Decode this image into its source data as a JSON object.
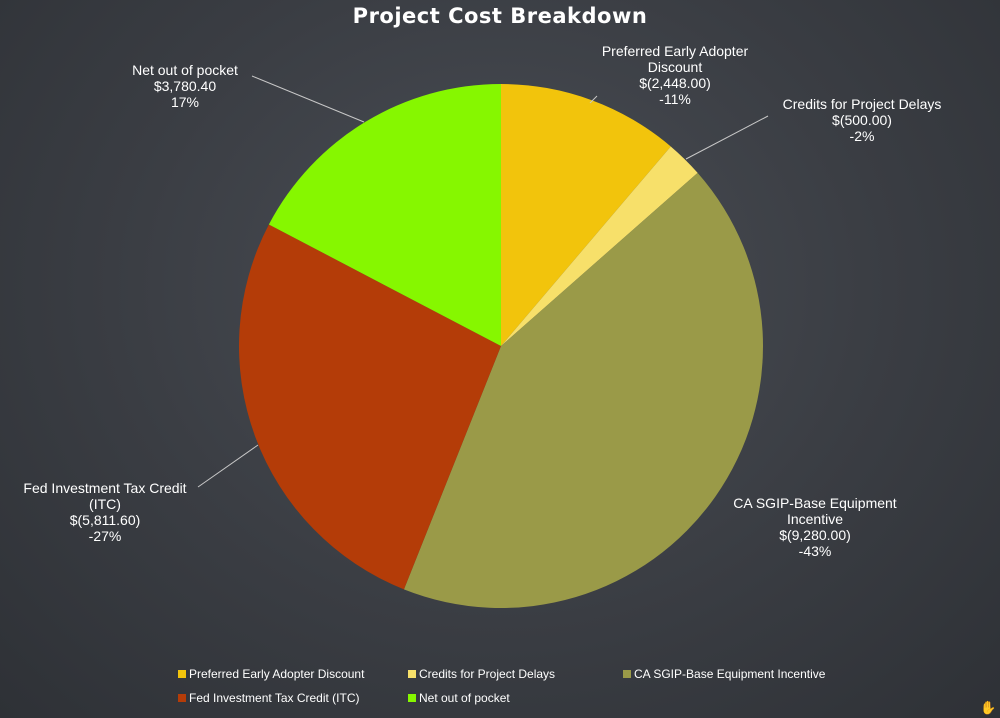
{
  "chart_data": {
    "type": "pie",
    "title": "Project Cost Breakdown",
    "start_angle_deg": 0,
    "direction": "clockwise",
    "slices": [
      {
        "name": "Preferred Early Adopter Discount",
        "label_lines": [
          "Preferred Early Adopter",
          "Discount"
        ],
        "value": 2448.0,
        "value_label": "$(2,448.00)",
        "percent_label": "-11%",
        "color": "#f2c40c"
      },
      {
        "name": "Credits for Project Delays",
        "label_lines": [
          "Credits for Project Delays"
        ],
        "value": 500.0,
        "value_label": "$(500.00)",
        "percent_label": "-2%",
        "color": "#f7e06a"
      },
      {
        "name": "CA SGIP-Base Equipment Incentive",
        "label_lines": [
          "CA SGIP-Base Equipment",
          "Incentive"
        ],
        "value": 9280.0,
        "value_label": "$(9,280.00)",
        "percent_label": "-43%",
        "color": "#9a9a48"
      },
      {
        "name": "Fed Investment Tax Credit (ITC)",
        "label_lines": [
          "Fed Investment Tax Credit",
          "(ITC)"
        ],
        "value": 5811.6,
        "value_label": "$(5,811.60)",
        "percent_label": "-27%",
        "color": "#b43c08"
      },
      {
        "name": "Net out of pocket",
        "label_lines": [
          "Net out of pocket"
        ],
        "value": 3780.4,
        "value_label": "$3,780.40",
        "percent_label": "17%",
        "color": "#86f700"
      }
    ],
    "legend": {
      "placement": "bottom",
      "entries": [
        "Preferred Early Adopter Discount",
        "Credits for Project Delays",
        "CA SGIP-Base Equipment Incentive",
        "Fed Investment Tax Credit (ITC)",
        "Net out of pocket"
      ]
    }
  },
  "ui": {
    "leader_line_color": "#c8c8c8",
    "corner_icon": "hand-icon"
  }
}
